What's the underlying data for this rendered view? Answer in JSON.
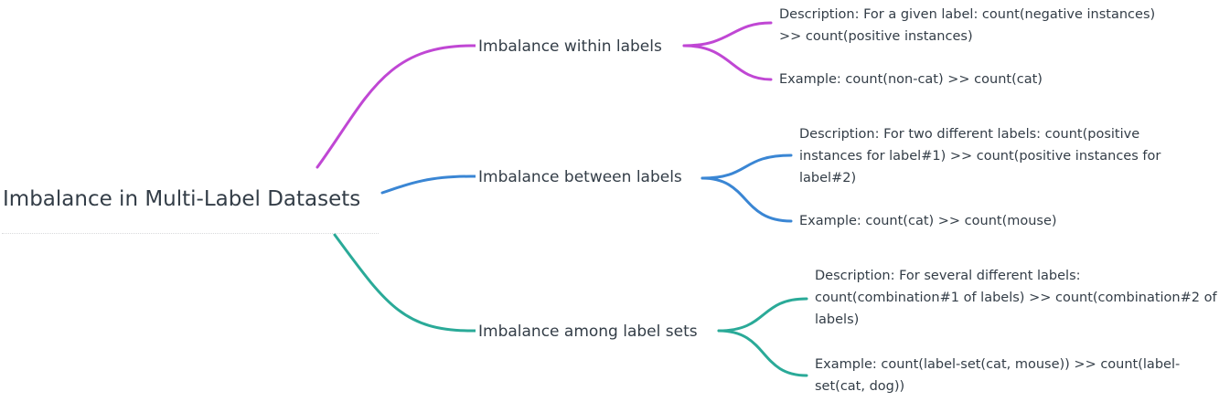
{
  "root": {
    "title": "Imbalance in Multi-Label Datasets"
  },
  "colors": {
    "within": "#c047d4",
    "between": "#3a86d4",
    "among": "#2aaa98",
    "text": "#333d47"
  },
  "branches": [
    {
      "label": "Imbalance within labels",
      "color_key": "within",
      "description": [
        "Description: For a given label: count(negative instances)",
        ">> count(positive instances)"
      ],
      "example": [
        "Example: count(non-cat) >> count(cat)"
      ]
    },
    {
      "label": "Imbalance between labels",
      "color_key": "between",
      "description": [
        "Description: For two different labels: count(positive",
        "instances for label#1) >> count(positive instances for",
        "label#2)"
      ],
      "example": [
        "Example: count(cat) >> count(mouse)"
      ]
    },
    {
      "label": "Imbalance among label sets",
      "color_key": "among",
      "description": [
        "Description: For several different labels:",
        "count(combination#1 of labels) >> count(combination#2 of",
        "labels)"
      ],
      "example": [
        "Example: count(label-set(cat, mouse)) >> count(label-",
        "set(cat, dog))"
      ]
    }
  ]
}
